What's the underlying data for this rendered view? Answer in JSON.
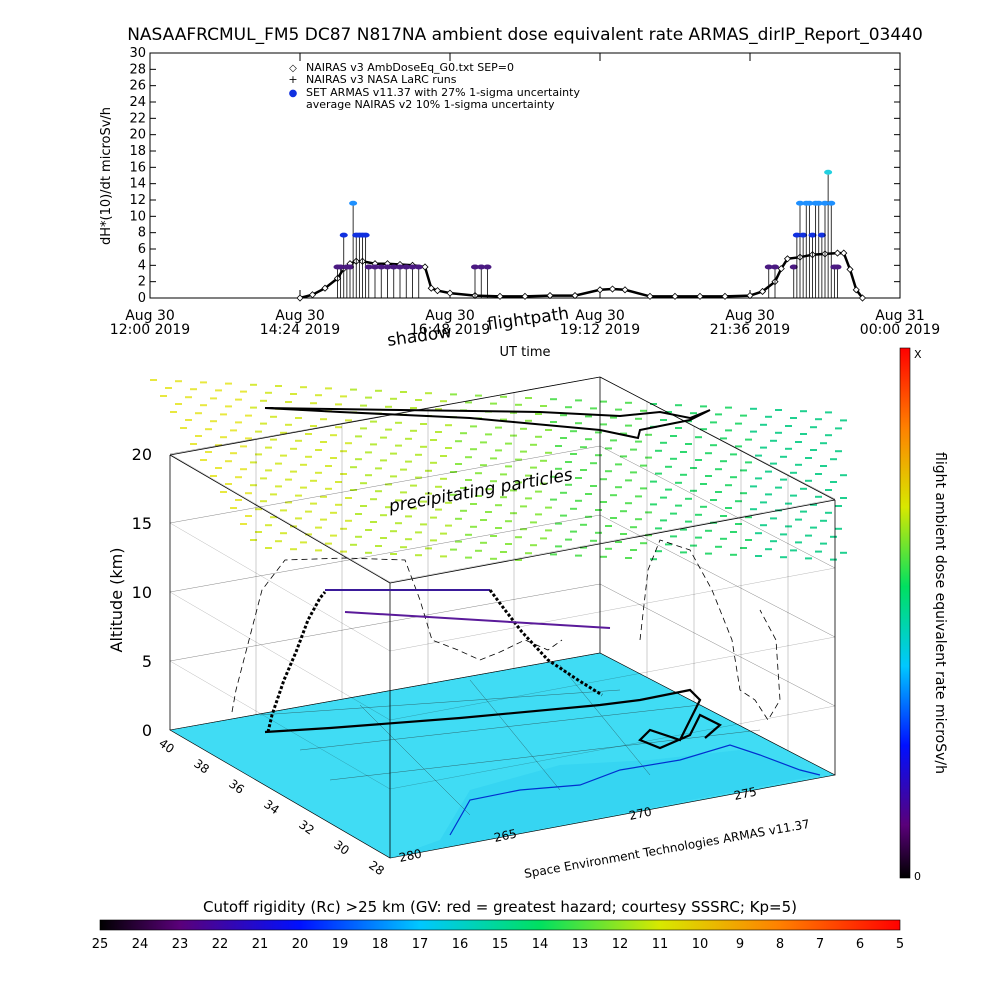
{
  "title": "NASAAFRCMUL_FM5 DC87 N817NA ambient dose equivalent rate ARMAS_dirIP_Report_03440",
  "chart_data": [
    {
      "type": "scatter",
      "ylabel": "dH*(10)/dt microSv/h",
      "xlabel": "UT time",
      "ylim": [
        0,
        30
      ],
      "yticks": [
        "0",
        "2",
        "4",
        "6",
        "8",
        "10",
        "12",
        "14",
        "16",
        "18",
        "20",
        "22",
        "24",
        "26",
        "28",
        "30"
      ],
      "xlim_hours": [
        12.0,
        24.0
      ],
      "xticks": [
        {
          "h": 12.0,
          "line1": "Aug 30",
          "line2": "12:00 2019"
        },
        {
          "h": 14.4,
          "line1": "Aug 30",
          "line2": "14:24 2019"
        },
        {
          "h": 16.8,
          "line1": "Aug 30",
          "line2": "16:48 2019"
        },
        {
          "h": 19.2,
          "line1": "Aug 30",
          "line2": "19:12 2019"
        },
        {
          "h": 21.6,
          "line1": "Aug 30",
          "line2": "21:36 2019"
        },
        {
          "h": 24.0,
          "line1": "Aug 31",
          "line2": "00:00 2019"
        }
      ],
      "legend": [
        {
          "symbol": "◇",
          "label": "NAIRAS v3 AmbDoseEq_G0.txt SEP=0"
        },
        {
          "symbol": "+",
          "label": "NAIRAS v3 NASA LaRC runs"
        },
        {
          "symbol": "●",
          "label": "SET ARMAS v11.37 with 27% 1-sigma uncertainty"
        },
        {
          "symbol": "",
          "label": "average NAIRAS v2 10% 1-sigma uncertainty"
        }
      ],
      "series": [
        {
          "name": "NAIRAS v3 AmbDoseEq_G0.txt SEP=0",
          "x": [
            14.4,
            14.6,
            14.8,
            15.0,
            15.1,
            15.2,
            15.3,
            15.4,
            15.6,
            15.8,
            16.0,
            16.2,
            16.4,
            16.5,
            16.6,
            16.8,
            17.2,
            17.6,
            18.0,
            18.4,
            18.8,
            19.2,
            19.4,
            19.6,
            20.0,
            20.4,
            20.8,
            21.2,
            21.6,
            21.8,
            22.0,
            22.1,
            22.2,
            22.4,
            22.6,
            22.8,
            23.0,
            23.1,
            23.2,
            23.3,
            23.4
          ],
          "y": [
            0.0,
            0.4,
            1.2,
            2.4,
            3.6,
            4.2,
            4.5,
            4.5,
            4.2,
            4.2,
            4.1,
            4.0,
            3.8,
            1.2,
            0.9,
            0.6,
            0.3,
            0.2,
            0.2,
            0.3,
            0.3,
            1.0,
            1.1,
            1.0,
            0.2,
            0.2,
            0.2,
            0.2,
            0.3,
            0.8,
            2.0,
            3.6,
            4.8,
            5.0,
            5.3,
            5.4,
            5.5,
            5.5,
            3.5,
            1.0,
            0.0
          ]
        },
        {
          "name": "SET ARMAS v11.37 with 27% 1-sigma uncertainty",
          "x": [
            15.0,
            15.05,
            15.1,
            15.15,
            15.2,
            15.25,
            15.3,
            15.35,
            15.4,
            15.45,
            15.5,
            15.6,
            15.7,
            15.8,
            15.9,
            16.0,
            16.1,
            16.2,
            16.3,
            17.2,
            17.3,
            17.4,
            21.9,
            22.0,
            22.3,
            22.35,
            22.4,
            22.45,
            22.5,
            22.55,
            22.6,
            22.65,
            22.7,
            22.75,
            22.8,
            22.85,
            22.9,
            22.95,
            23.0
          ],
          "y": [
            3.8,
            3.8,
            7.7,
            3.8,
            3.8,
            11.6,
            7.7,
            7.7,
            7.7,
            7.7,
            3.8,
            3.8,
            3.8,
            3.8,
            3.8,
            3.8,
            3.8,
            3.8,
            3.8,
            3.8,
            3.8,
            3.8,
            3.8,
            3.8,
            3.8,
            7.7,
            11.6,
            7.7,
            11.6,
            11.6,
            7.7,
            11.6,
            11.6,
            7.7,
            11.6,
            15.4,
            11.6,
            3.8,
            3.8
          ]
        }
      ]
    },
    {
      "type": "3d-trajectory",
      "ylabel": "Altitude (km)",
      "zticks": [
        "0",
        "5",
        "10",
        "15",
        "20"
      ],
      "lat_ticks": [
        "40",
        "38",
        "36",
        "34",
        "32",
        "30",
        "28"
      ],
      "lon_ticks": [
        "280",
        "265",
        "270",
        "275"
      ],
      "annotations": {
        "shadow": "shadow",
        "flightpath": "flightpath",
        "precipitating": "precipitating particles",
        "credit": "Space Environment Technologies ARMAS v11.37"
      }
    }
  ],
  "side_colorbar": {
    "label": "flight ambient dose equivalent rate microSv/h",
    "top_label": "X",
    "bottom_label": "0"
  },
  "bottom_colorbar": {
    "title": "Cutoff rigidity (Rc) >25 km (GV: red = greatest hazard; courtesy SSSRC; Kp=5)",
    "ticks": [
      "25",
      "24",
      "23",
      "22",
      "21",
      "20",
      "19",
      "18",
      "17",
      "16",
      "15",
      "14",
      "13",
      "12",
      "11",
      "10",
      "9",
      "8",
      "7",
      "6",
      "5"
    ]
  }
}
